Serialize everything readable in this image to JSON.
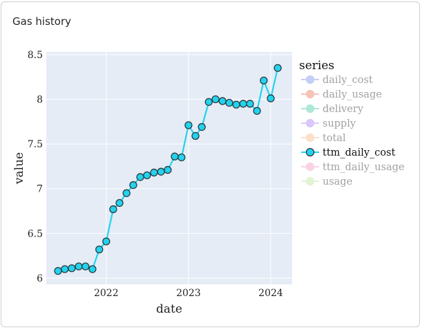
{
  "card": {
    "title": "Gas history"
  },
  "colors": {
    "plot_bg": "#e5ecf6",
    "grid": "#ffffff",
    "active_line": "#22d3ee",
    "marker_edge": "#2d3a40"
  },
  "chart_data": {
    "type": "line",
    "xlabel": "date",
    "ylabel": "value",
    "ylim": [
      5.93,
      8.53
    ],
    "yticks": [
      6,
      6.5,
      7,
      7.5,
      8,
      8.5
    ],
    "ytick_labels": [
      "6",
      "6.5",
      "7",
      "7.5",
      "8",
      "8.5"
    ],
    "xlim": [
      "2021-04-10",
      "2024-04-05"
    ],
    "xticks": [
      "2022-01-01",
      "2023-01-01",
      "2024-01-01"
    ],
    "xtick_labels": [
      "2022",
      "2023",
      "2024"
    ],
    "grid": true,
    "legend": {
      "title": "series",
      "placement": "right",
      "entries": [
        {
          "name": "daily_cost",
          "color": "#8c9fec",
          "active": false
        },
        {
          "name": "daily_usage",
          "color": "#ec8873",
          "active": false
        },
        {
          "name": "delivery",
          "color": "#5ed0b4",
          "active": false
        },
        {
          "name": "supply",
          "color": "#b593f5",
          "active": false
        },
        {
          "name": "total",
          "color": "#f6c49a",
          "active": false
        },
        {
          "name": "ttm_daily_cost",
          "color": "#22d3ee",
          "active": true
        },
        {
          "name": "ttm_daily_usage",
          "color": "#f5a9cb",
          "active": false
        },
        {
          "name": "usage",
          "color": "#c5e8a6",
          "active": false
        }
      ]
    },
    "series": [
      {
        "name": "ttm_daily_cost",
        "x": [
          "2021-06-01",
          "2021-07-01",
          "2021-08-01",
          "2021-09-01",
          "2021-10-01",
          "2021-11-01",
          "2021-12-01",
          "2022-01-01",
          "2022-02-01",
          "2022-03-01",
          "2022-04-01",
          "2022-05-01",
          "2022-06-01",
          "2022-07-01",
          "2022-08-01",
          "2022-09-01",
          "2022-10-01",
          "2022-11-01",
          "2022-12-01",
          "2023-01-01",
          "2023-02-01",
          "2023-03-01",
          "2023-04-01",
          "2023-05-01",
          "2023-06-01",
          "2023-07-01",
          "2023-08-01",
          "2023-09-01",
          "2023-10-01",
          "2023-11-01",
          "2023-12-01",
          "2024-01-01",
          "2024-02-01"
        ],
        "values": [
          6.08,
          6.1,
          6.11,
          6.13,
          6.13,
          6.1,
          6.32,
          6.41,
          6.77,
          6.84,
          6.95,
          7.04,
          7.13,
          7.15,
          7.18,
          7.19,
          7.21,
          7.36,
          7.35,
          7.71,
          7.59,
          7.69,
          7.97,
          8.0,
          7.98,
          7.96,
          7.94,
          7.95,
          7.95,
          7.87,
          8.21,
          8.01,
          8.35
        ]
      }
    ]
  }
}
